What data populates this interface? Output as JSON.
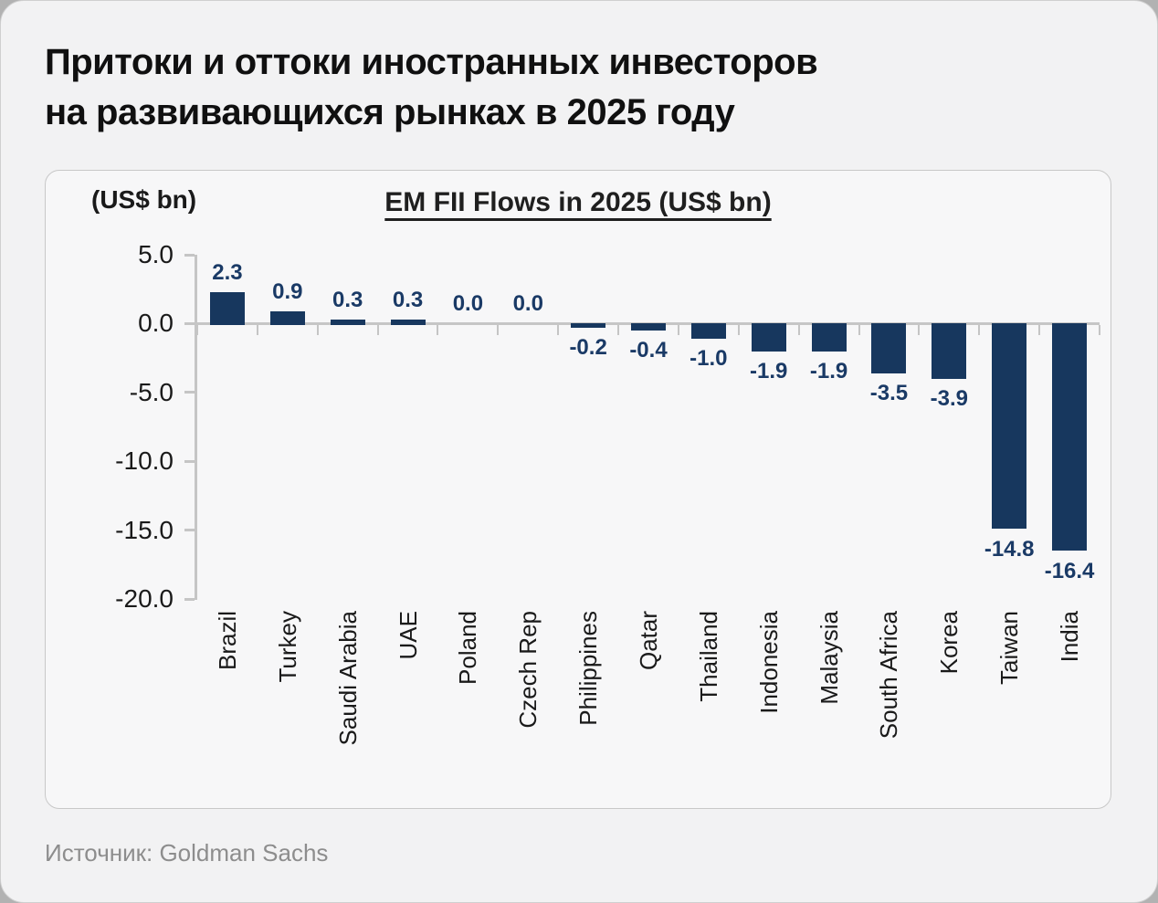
{
  "header": {
    "title_lines": [
      "Притоки и оттоки иностранных инвесторов",
      "на развивающихся рынках в 2025 году"
    ]
  },
  "chart_data": {
    "type": "bar",
    "title": "EM FII Flows in 2025 (US$ bn)",
    "ylabel": "(US$ bn)",
    "categories": [
      "Brazil",
      "Turkey",
      "Saudi Arabia",
      "UAE",
      "Poland",
      "Czech Rep",
      "Philippines",
      "Qatar",
      "Thailand",
      "Indonesia",
      "Malaysia",
      "South Africa",
      "Korea",
      "Taiwan",
      "India"
    ],
    "values": [
      2.3,
      0.9,
      0.3,
      0.3,
      0.0,
      0.0,
      -0.2,
      -0.4,
      -1.0,
      -1.9,
      -1.9,
      -3.5,
      -3.9,
      -14.8,
      -16.4
    ],
    "ylim": [
      -20,
      5
    ],
    "yticks": [
      5.0,
      0.0,
      -5.0,
      -10.0,
      -15.0,
      -20.0
    ],
    "grid": false,
    "legend": null,
    "bar_color": "#17375e",
    "value_label_color": "#1a3a66",
    "axis_color": "#c5c5c5"
  },
  "footer": {
    "source": "Источник: Goldman Sachs"
  }
}
